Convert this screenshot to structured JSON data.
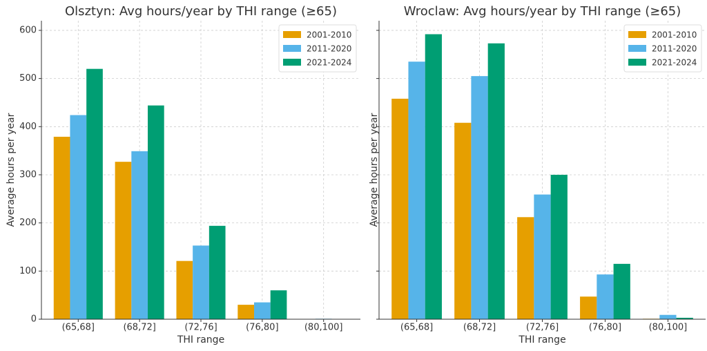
{
  "chart_data": [
    {
      "type": "bar",
      "title": "Olsztyn: Avg hours/year by THI range (≥65)",
      "x_label": "THI range",
      "y_label": "Average hours per year",
      "categories": [
        "(65,68]",
        "(68,72]",
        "(72,76]",
        "(76,80]",
        "(80,100]"
      ],
      "series": [
        {
          "name": "2001-2010",
          "color": "#e69f00",
          "values": [
            379,
            327,
            121,
            30,
            0
          ]
        },
        {
          "name": "2011-2020",
          "color": "#56b4e9",
          "values": [
            424,
            349,
            153,
            35,
            1
          ]
        },
        {
          "name": "2021-2024",
          "color": "#009e73",
          "values": [
            520,
            444,
            194,
            60,
            0
          ]
        }
      ],
      "ylim": [
        0,
        620
      ],
      "yticks": [
        0,
        100,
        200,
        300,
        400,
        500,
        600
      ],
      "grid": true,
      "legend": "upper right"
    },
    {
      "type": "bar",
      "title": "Wroclaw: Avg hours/year by THI range (≥65)",
      "x_label": "THI range",
      "y_label": "Average hours per year",
      "categories": [
        "(65,68]",
        "(68,72]",
        "(72,76]",
        "(76,80]",
        "(80,100]"
      ],
      "series": [
        {
          "name": "2001-2010",
          "color": "#e69f00",
          "values": [
            458,
            408,
            212,
            47,
            1
          ]
        },
        {
          "name": "2011-2020",
          "color": "#56b4e9",
          "values": [
            535,
            505,
            259,
            93,
            9
          ]
        },
        {
          "name": "2021-2024",
          "color": "#009e73",
          "values": [
            592,
            573,
            300,
            115,
            3
          ]
        }
      ],
      "sharey": true,
      "grid": true,
      "legend": "upper right"
    }
  ]
}
